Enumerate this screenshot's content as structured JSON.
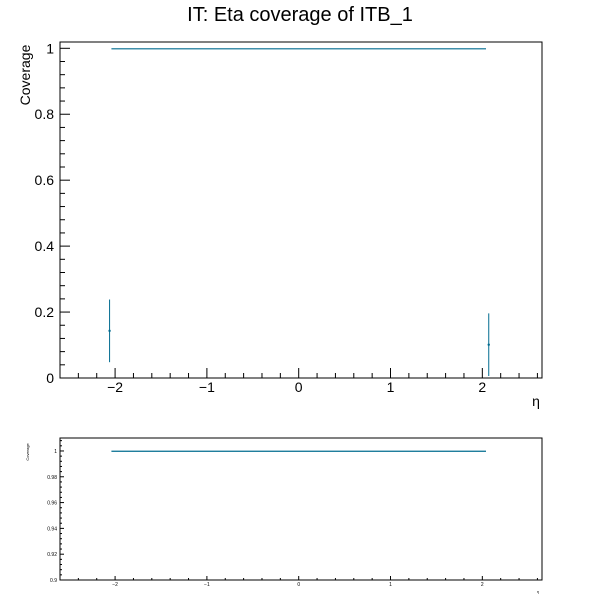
{
  "title": "IT: Eta coverage of ITB_1",
  "colors": {
    "series": "#006b8f",
    "axis": "#000000"
  },
  "chart_data": [
    {
      "type": "line",
      "panel": "main",
      "title": "IT: Eta coverage of ITB_1",
      "xlabel": "η",
      "ylabel": "Coverage",
      "xlim": [
        -2.6,
        2.65
      ],
      "ylim": [
        0,
        1.01
      ],
      "xticks": [
        -2,
        -1,
        0,
        1,
        2
      ],
      "xtick_labels": [
        "−2",
        "−1",
        "0",
        "1",
        "2"
      ],
      "yticks": [
        0,
        0.2,
        0.4,
        0.6,
        0.8,
        1
      ],
      "ytick_labels": [
        "0",
        "0.2",
        "0.4",
        "0.6",
        "0.8",
        "1"
      ],
      "series": [
        {
          "segments": [
            {
              "x": [
                -2.04,
                2.04
              ],
              "y": [
                0.9985,
                0.9985
              ]
            }
          ],
          "points": [
            {
              "x": -2.06,
              "y": 0.143,
              "ylo": 0.048,
              "yhi": 0.238
            },
            {
              "x": 2.07,
              "y": 0.101,
              "ylo": 0.006,
              "yhi": 0.196
            }
          ]
        }
      ],
      "grid": false
    },
    {
      "type": "line",
      "panel": "zoom",
      "xlabel": "η",
      "ylabel": "Coverage",
      "xlim": [
        -2.6,
        2.65
      ],
      "ylim": [
        0.9,
        1.0085
      ],
      "xticks": [
        -2,
        -1,
        0,
        1,
        2
      ],
      "xtick_labels": [
        "−2",
        "−1",
        "0",
        "1",
        "2"
      ],
      "yticks": [
        0.9,
        0.92,
        0.94,
        0.96,
        0.98,
        1
      ],
      "ytick_labels": [
        "0.9",
        "0.92",
        "0.94",
        "0.96",
        "0.98",
        "1"
      ],
      "series": [
        {
          "segments": [
            {
              "x": [
                -2.04,
                2.04
              ],
              "y": [
                0.9998,
                0.9998
              ]
            }
          ],
          "points": []
        }
      ],
      "grid": false
    }
  ]
}
